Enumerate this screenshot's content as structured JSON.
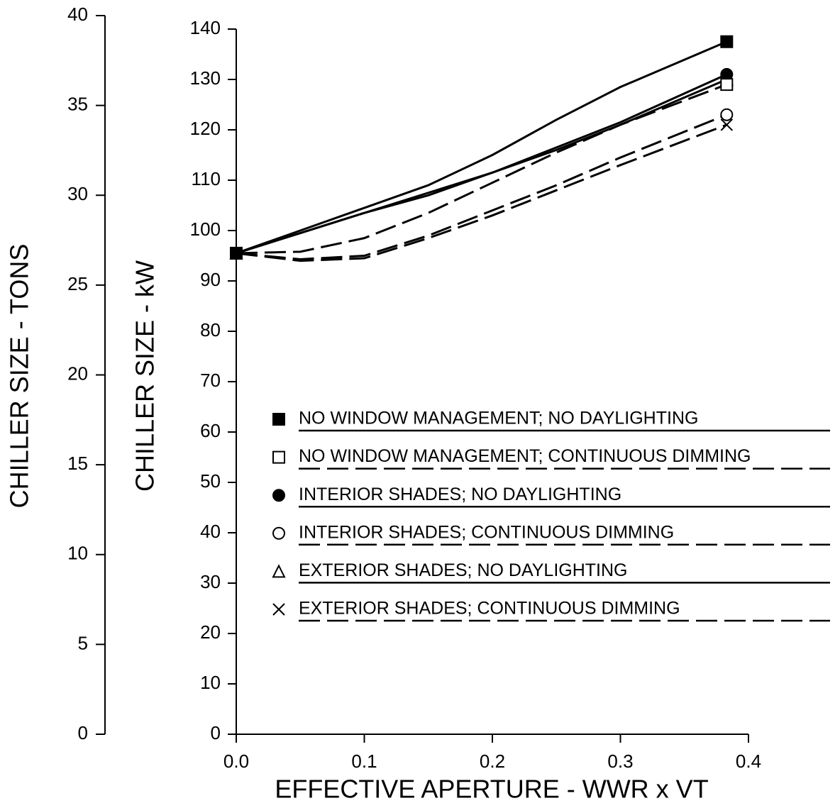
{
  "chart_data": {
    "type": "line",
    "xlabel": "EFFECTIVE APERTURE - WWR x VT",
    "ylabel": "CHILLER SIZE - kW",
    "y2label": "CHILLER SIZE - TONS",
    "x": [
      0,
      0.05,
      0.1,
      0.15,
      0.2,
      0.25,
      0.3,
      0.383
    ],
    "xlim": [
      0,
      0.4
    ],
    "xticks": [
      {
        "value": 0,
        "label": "0.0"
      },
      0.1,
      0.2,
      0.3,
      0.4
    ],
    "ylim": [
      0,
      140
    ],
    "yticks": [
      0,
      10,
      20,
      30,
      40,
      50,
      60,
      70,
      80,
      90,
      100,
      110,
      120,
      130,
      140
    ],
    "y2lim": [
      0,
      40
    ],
    "y2ticks": [
      0,
      5,
      10,
      15,
      20,
      25,
      30,
      35,
      40
    ],
    "series": [
      {
        "name": "NO WINDOW MANAGEMENT; NO DAYLIGHTING",
        "color": "#000000",
        "marker": "square-filled",
        "dash": false,
        "values": [
          95.5,
          100,
          104.5,
          109,
          115,
          122,
          128.5,
          137.5
        ]
      },
      {
        "name": "NO WINDOW MANAGEMENT; CONTINUOUS DIMMING",
        "color": "#000000",
        "marker": "square-open",
        "dash": true,
        "values": [
          95.5,
          95.8,
          98.5,
          103.5,
          109.5,
          115.5,
          121,
          129
        ]
      },
      {
        "name": "INTERIOR SHADES; NO DAYLIGHTING",
        "color": "#000000",
        "marker": "circle-filled",
        "dash": false,
        "values": [
          95.5,
          99.5,
          103.5,
          107.5,
          111.5,
          116.5,
          121.5,
          131
        ]
      },
      {
        "name": "INTERIOR SHADES; CONTINUOUS DIMMING",
        "color": "#000000",
        "marker": "circle-open",
        "dash": true,
        "values": [
          95.5,
          94.3,
          95,
          99,
          104,
          109,
          114.5,
          123
        ]
      },
      {
        "name": "EXTERIOR SHADES; NO DAYLIGHTING",
        "color": "#000000",
        "marker": "triangle-open",
        "dash": false,
        "values": [
          95.5,
          99.5,
          103.5,
          107,
          111.5,
          116,
          121,
          130
        ]
      },
      {
        "name": "EXTERIOR SHADES; CONTINUOUS DIMMING",
        "color": "#000000",
        "marker": "cross",
        "dash": true,
        "values": [
          95.5,
          94,
          94.5,
          98.5,
          103,
          108,
          113,
          121
        ]
      }
    ]
  }
}
